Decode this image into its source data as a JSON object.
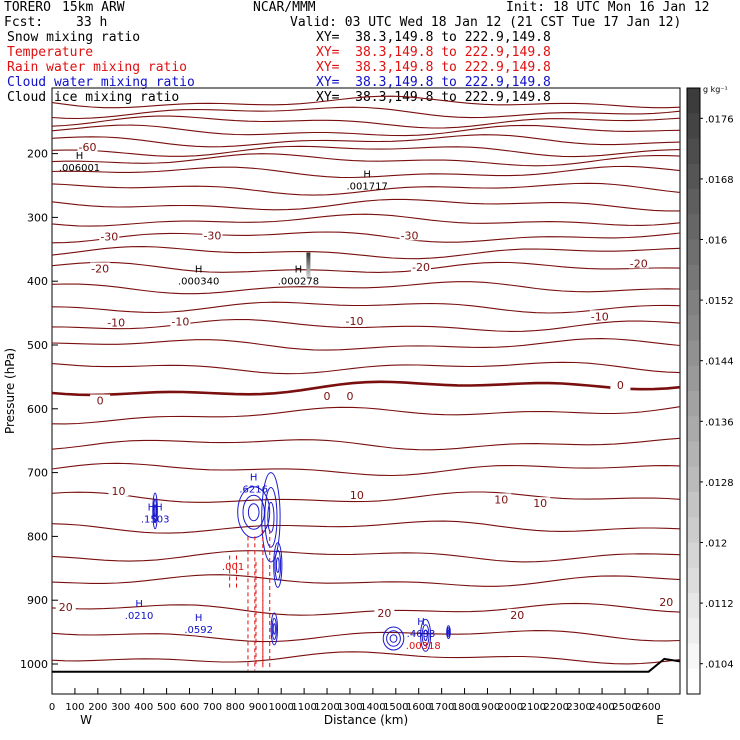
{
  "header": {
    "model": "TORERO",
    "resolution": "15km ARW",
    "center": "NCAR/MMM",
    "init": "Init: 18 UTC Mon 16 Jan 12",
    "fcst_label": "Fcst:",
    "fcst_value": "33 h",
    "valid": "Valid: 03 UTC Wed 18 Jan 12 (21 CST Tue 17 Jan 12)"
  },
  "fields": [
    {
      "name": "Snow mixing ratio",
      "xy": "XY=  38.3,149.8 to 222.9,149.8",
      "color": "#000000"
    },
    {
      "name": "Temperature",
      "xy": "XY=  38.3,149.8 to 222.9,149.8",
      "color": "#e01010"
    },
    {
      "name": "Rain water mixing ratio",
      "xy": "XY=  38.3,149.8 to 222.9,149.8",
      "color": "#e01010"
    },
    {
      "name": "Cloud water mixing ratio",
      "xy": "XY=  38.3,149.8 to 222.9,149.8",
      "color": "#1010c8"
    },
    {
      "name": "Cloud ice mixing ratio",
      "xy": "XY=  38.3,149.8 to 222.9,149.8",
      "color": "#000000"
    }
  ],
  "chart_data": {
    "type": "contour-cross-section",
    "xlabel": "Distance (km)",
    "ylabel": "Pressure (hPa)",
    "xlim": [
      0,
      2740
    ],
    "ylim": [
      1050,
      100
    ],
    "x_ticks": [
      0,
      100,
      200,
      300,
      400,
      500,
      600,
      700,
      800,
      900,
      1000,
      1100,
      1200,
      1300,
      1400,
      1500,
      1600,
      1700,
      1800,
      1900,
      2000,
      2100,
      2200,
      2300,
      2400,
      2500,
      2600
    ],
    "y_ticks": [
      200,
      300,
      400,
      500,
      600,
      700,
      800,
      900,
      1000
    ],
    "x_end_labels": {
      "left": "W",
      "right": "E"
    },
    "colorbar": {
      "unit": "g kg⁻¹",
      "ticks": [
        ".0176",
        ".0168",
        ".016",
        ".0152",
        ".0144",
        ".0136",
        ".0128",
        ".012",
        ".0112",
        ".0104"
      ],
      "tick_values": [
        0.0176,
        0.0168,
        0.016,
        0.0152,
        0.0144,
        0.0136,
        0.0128,
        0.012,
        0.0112,
        0.0104
      ]
    },
    "temperature_labels": [
      {
        "text": "-60",
        "x": 155,
        "p": 190
      },
      {
        "text": "-30",
        "x": 250,
        "p": 330
      },
      {
        "text": "-30",
        "x": 700,
        "p": 328
      },
      {
        "text": "-30",
        "x": 1560,
        "p": 328
      },
      {
        "text": "-20",
        "x": 210,
        "p": 380
      },
      {
        "text": "-20",
        "x": 1610,
        "p": 378
      },
      {
        "text": "-20",
        "x": 2560,
        "p": 372
      },
      {
        "text": "-10",
        "x": 280,
        "p": 465
      },
      {
        "text": "-10",
        "x": 560,
        "p": 463
      },
      {
        "text": "-10",
        "x": 1320,
        "p": 462
      },
      {
        "text": "-10",
        "x": 2390,
        "p": 455
      },
      {
        "text": "0",
        "x": 210,
        "p": 587
      },
      {
        "text": "0",
        "x": 1200,
        "p": 580
      },
      {
        "text": "0",
        "x": 1300,
        "p": 580
      },
      {
        "text": "0",
        "x": 2480,
        "p": 563
      },
      {
        "text": "10",
        "x": 290,
        "p": 729
      },
      {
        "text": "10",
        "x": 1330,
        "p": 735
      },
      {
        "text": "10",
        "x": 1960,
        "p": 742
      },
      {
        "text": "10",
        "x": 2130,
        "p": 748
      },
      {
        "text": "20",
        "x": 60,
        "p": 911
      },
      {
        "text": "20",
        "x": 1450,
        "p": 920
      },
      {
        "text": "20",
        "x": 2030,
        "p": 923
      },
      {
        "text": "20",
        "x": 2680,
        "p": 903
      }
    ],
    "maxima_labels": [
      {
        "h": "H",
        "value": ".006001",
        "x": 120,
        "p": 218,
        "color": "#000000"
      },
      {
        "h": "H",
        "value": ".001717",
        "x": 1375,
        "p": 247,
        "color": "#000000"
      },
      {
        "h": "H",
        "value": ".000340",
        "x": 640,
        "p": 396,
        "color": "#000000"
      },
      {
        "h": "H",
        "value": ".000278",
        "x": 1075,
        "p": 396,
        "color": "#000000"
      },
      {
        "h": "HH",
        "value": ".1503",
        "x": 450,
        "p": 769,
        "color": "#1010c8"
      },
      {
        "h": "H",
        "value": ".6216",
        "x": 880,
        "p": 722,
        "color": "#1010c8"
      },
      {
        "h": "H",
        "value": ".0210",
        "x": 380,
        "p": 920,
        "color": "#1010c8"
      },
      {
        "h": "H",
        "value": ".0592",
        "x": 640,
        "p": 942,
        "color": "#1010c8"
      },
      {
        "h": "H",
        "value": ".4693",
        "x": 1610,
        "p": 948,
        "color": "#1010c8"
      },
      {
        "h": "",
        "value": ".00318",
        "x": 1620,
        "p": 967,
        "color": "#e01010"
      },
      {
        "h": "",
        "value": ".001",
        "x": 790,
        "p": 843,
        "color": "#e01010"
      }
    ]
  }
}
